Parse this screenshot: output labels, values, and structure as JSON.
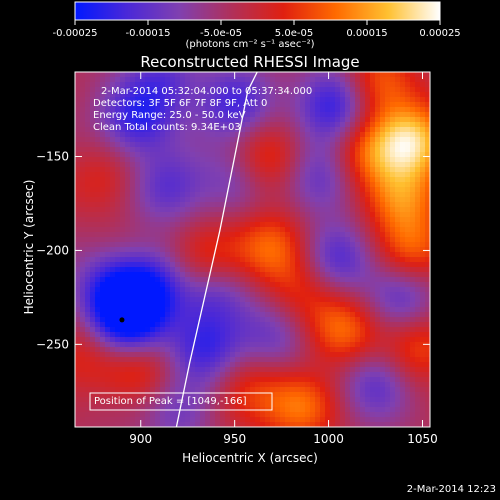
{
  "chart_data": {
    "type": "heatmap",
    "title": "Reconstructed RHESSI Image",
    "xlabel": "Heliocentric X (arcsec)",
    "ylabel": "Heliocentric Y (arcsec)",
    "xlim": [
      865,
      1054
    ],
    "ylim": [
      -294,
      -105
    ],
    "x_ticks": [
      900,
      950,
      1000,
      1050
    ],
    "x_tick_labels": [
      "900",
      "950",
      "1000",
      "1050"
    ],
    "y_ticks": [
      -150,
      -200,
      -250
    ],
    "y_tick_labels": [
      "−150",
      "−200",
      "−250"
    ],
    "colorbar": {
      "range": [
        -0.00025,
        0.00025
      ],
      "ticks": [
        -0.00025,
        -0.00015,
        -5e-05,
        5e-05,
        0.00015,
        0.00025
      ],
      "tick_labels": [
        "-0.00025",
        "-0.00015",
        "-5.0e-05",
        "5.0e-05",
        "0.00015",
        "0.00025"
      ],
      "units": "(photons cm⁻² s⁻¹ asec⁻²)",
      "colormap": [
        "#0018ff",
        "#4a28d8",
        "#8040b0",
        "#b0305a",
        "#e02010",
        "#ff6a00",
        "#ffc030",
        "#ffffff"
      ]
    },
    "annotations": [
      "2-Mar-2014 05:32:04.000 to 05:37:34.000",
      "Detectors: 3F 5F 6F 7F 8F 9F, Att 0",
      "Energy Range: 25.0 - 50.0 keV",
      "Clean    Total counts: 9.34E+03"
    ],
    "peak_label": "Position of Peak = [1049,-166]",
    "peak_position": [
      1049,
      -166
    ],
    "limb_curve": {
      "x": [
        919,
        926,
        934,
        942,
        950,
        957,
        962
      ],
      "y": [
        -294,
        -260,
        -225,
        -190,
        -150,
        -115,
        -105
      ]
    },
    "marker_position": [
      890,
      -237
    ],
    "blobs": [
      {
        "x": 912,
        "y": -110,
        "v": -0.00011
      },
      {
        "x": 1027,
        "y": -111,
        "v": 0.00014
      },
      {
        "x": 950,
        "y": -122,
        "v": -0.00014
      },
      {
        "x": 1003,
        "y": -122,
        "v": -0.00018
      },
      {
        "x": 897,
        "y": -131,
        "v": -0.00015
      },
      {
        "x": 1045,
        "y": -142,
        "v": 0.00023
      },
      {
        "x": 1020,
        "y": -148,
        "v": 0.00012
      },
      {
        "x": 968,
        "y": -152,
        "v": 0.00011
      },
      {
        "x": 950,
        "y": -162,
        "v": -8e-05
      },
      {
        "x": 995,
        "y": -162,
        "v": -0.00012
      },
      {
        "x": 880,
        "y": -163,
        "v": 7e-05
      },
      {
        "x": 915,
        "y": -167,
        "v": -0.00012
      },
      {
        "x": 1038,
        "y": -172,
        "v": 0.00016
      },
      {
        "x": 970,
        "y": -198,
        "v": 0.00013
      },
      {
        "x": 1046,
        "y": -200,
        "v": 0.00013
      },
      {
        "x": 1005,
        "y": -205,
        "v": -0.00013
      },
      {
        "x": 935,
        "y": -205,
        "v": 0.00012
      },
      {
        "x": 883,
        "y": -220,
        "v": -0.00012
      },
      {
        "x": 905,
        "y": -220,
        "v": -0.00016
      },
      {
        "x": 938,
        "y": -222,
        "v": -0.00012
      },
      {
        "x": 985,
        "y": -220,
        "v": 8e-05
      },
      {
        "x": 1040,
        "y": -225,
        "v": -0.00012
      },
      {
        "x": 893,
        "y": -237,
        "v": -0.00024
      },
      {
        "x": 1008,
        "y": -243,
        "v": 0.00015
      },
      {
        "x": 935,
        "y": -252,
        "v": -0.00014
      },
      {
        "x": 970,
        "y": -247,
        "v": -0.0001
      },
      {
        "x": 1048,
        "y": -252,
        "v": 0.00012
      },
      {
        "x": 868,
        "y": -255,
        "v": 8e-05
      },
      {
        "x": 900,
        "y": -264,
        "v": 0.0001
      },
      {
        "x": 1025,
        "y": -270,
        "v": -0.00012
      },
      {
        "x": 958,
        "y": -276,
        "v": 0.0001
      },
      {
        "x": 920,
        "y": -285,
        "v": -0.0001
      },
      {
        "x": 985,
        "y": -283,
        "v": 0.00014
      }
    ]
  },
  "footer": {
    "timestamp": "2-Mar-2014 12:23"
  }
}
